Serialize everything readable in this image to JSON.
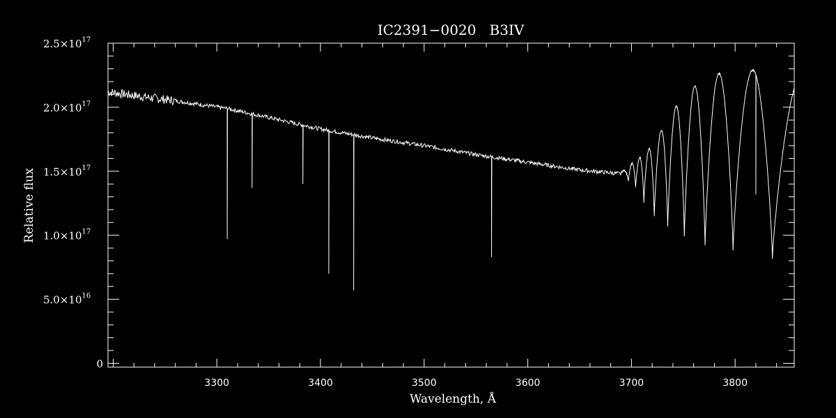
{
  "chart_data": {
    "type": "line",
    "title": "IC2391−0020   B3IV",
    "xlabel": "Wavelength, Å",
    "ylabel": "Relative flux",
    "xlim": [
      3195,
      3857
    ],
    "ylim": [
      -3000000000000000.0,
      2.5e+17
    ],
    "x_ticks": [
      {
        "value": 3300,
        "label": "3300"
      },
      {
        "value": 3400,
        "label": "3400"
      },
      {
        "value": 3500,
        "label": "3500"
      },
      {
        "value": 3600,
        "label": "3600"
      },
      {
        "value": 3700,
        "label": "3700"
      },
      {
        "value": 3800,
        "label": "3800"
      }
    ],
    "y_ticks": [
      {
        "value": 0,
        "mantissa": "0",
        "exponent": ""
      },
      {
        "value": 5e+16,
        "mantissa": "5.0×10",
        "exponent": "16"
      },
      {
        "value": 1e+17,
        "mantissa": "1.0×10",
        "exponent": "17"
      },
      {
        "value": 1.5e+17,
        "mantissa": "1.5×10",
        "exponent": "17"
      },
      {
        "value": 2e+17,
        "mantissa": "2.0×10",
        "exponent": "17"
      },
      {
        "value": 2.5e+17,
        "mantissa": "2.5×10",
        "exponent": "17"
      }
    ],
    "series": [
      {
        "color": "#ffffff",
        "continuum": {
          "x": [
            3195,
            3230,
            3260,
            3310,
            3350,
            3400,
            3450,
            3500,
            3550,
            3600,
            3650,
            3690
          ],
          "y": [
            2.12e+17,
            2.08e+17,
            2.05e+17,
            1.99e+17,
            1.92e+17,
            1.83e+17,
            1.76e+17,
            1.7e+17,
            1.63e+17,
            1.57e+17,
            1.51e+17,
            1.48e+17
          ]
        },
        "absorption_lines": [
          {
            "x": 3310,
            "y": 9.7e+16
          },
          {
            "x": 3334,
            "y": 1.37e+17
          },
          {
            "x": 3383,
            "y": 1.4e+17
          },
          {
            "x": 3408,
            "y": 7e+16
          },
          {
            "x": 3432,
            "y": 5.7e+16
          },
          {
            "x": 3565,
            "y": 8.3e+16
          },
          {
            "x": 3820,
            "y": 1.32e+17
          }
        ],
        "fringe_envelope": {
          "x": [
            3690,
            3700,
            3710,
            3720,
            3730,
            3740,
            3760,
            3780,
            3800,
            3815,
            3830,
            3850,
            3857
          ],
          "y": [
            1.49e+17,
            1.56e+17,
            1.62e+17,
            1.7e+17,
            1.84e+17,
            1.98e+17,
            2.16e+17,
            2.26e+17,
            2.27e+17,
            2.29e+17,
            2.29e+17,
            2.3e+17,
            2.3e+17
          ]
        },
        "fringe_minima": [
          {
            "x": 3697,
            "y": 1.42e+17
          },
          {
            "x": 3704,
            "y": 1.37e+17
          },
          {
            "x": 3712,
            "y": 1.26e+17
          },
          {
            "x": 3722,
            "y": 1.15e+17
          },
          {
            "x": 3735,
            "y": 1.07e+17
          },
          {
            "x": 3751,
            "y": 9.9e+16
          },
          {
            "x": 3771,
            "y": 9.2e+16
          },
          {
            "x": 3798,
            "y": 8.8e+16
          },
          {
            "x": 3836,
            "y": 8.2e+16
          }
        ]
      }
    ]
  }
}
